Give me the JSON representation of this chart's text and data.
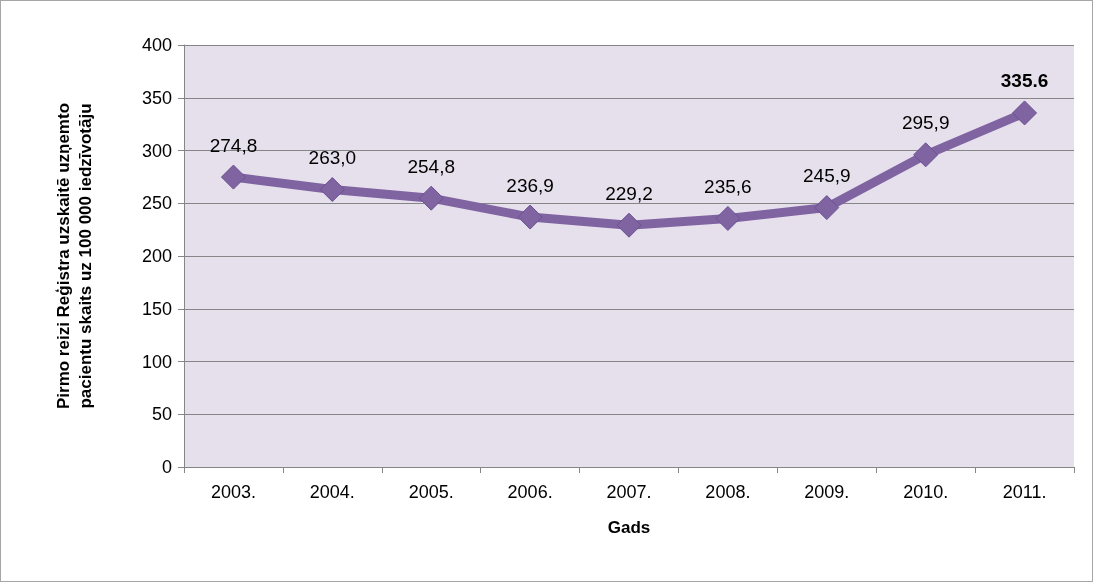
{
  "chart_data": {
    "type": "line",
    "xlabel": "Gads",
    "ylabel": "Pirmo reizi Reģistra uzskaitē uzņemto\npacientu skaits uz 100 000 iedzīvotāju",
    "categories": [
      "2003.",
      "2004.",
      "2005.",
      "2006.",
      "2007.",
      "2008.",
      "2009.",
      "2010.",
      "2011."
    ],
    "series": [
      {
        "color": "#8064a2",
        "values": [
          274.8,
          263.0,
          254.8,
          236.9,
          229.2,
          235.6,
          245.9,
          295.9,
          335.6
        ],
        "value_labels": [
          "274,8",
          "263,0",
          "254,8",
          "236,9",
          "229,2",
          "235,6",
          "245,9",
          "295,9",
          "335.6"
        ]
      }
    ],
    "ylim": [
      0,
      400
    ],
    "yticks": [
      0,
      50,
      100,
      150,
      200,
      250,
      300,
      350,
      400
    ],
    "grid": "y",
    "marker": "diamond",
    "line_style": "solid"
  }
}
